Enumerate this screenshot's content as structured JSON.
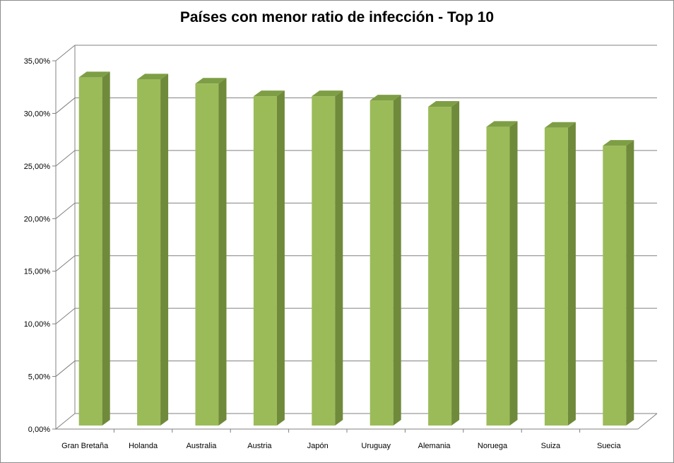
{
  "chart_data": {
    "type": "bar",
    "title": "Países con menor ratio de infección - Top 10",
    "xlabel": "",
    "ylabel": "",
    "categories": [
      "Gran Bretaña",
      "Holanda",
      "Australia",
      "Austria",
      "Japón",
      "Uruguay",
      "Alemania",
      "Noruega",
      "Suiza",
      "Suecia"
    ],
    "values": [
      33.7,
      33.5,
      33.1,
      31.9,
      31.9,
      31.5,
      30.9,
      29.0,
      28.9,
      27.2
    ],
    "ylim": [
      0,
      35
    ],
    "yticks": [
      "0,00%",
      "5,00%",
      "10,00%",
      "15,00%",
      "20,00%",
      "25,00%",
      "30,00%",
      "35,00%"
    ],
    "grid": true,
    "legend": "none",
    "colors": {
      "bar_front": "#9bbb59",
      "bar_side": "#6f8a3a",
      "bar_top": "#7e9e45",
      "grid": "#808080"
    }
  }
}
